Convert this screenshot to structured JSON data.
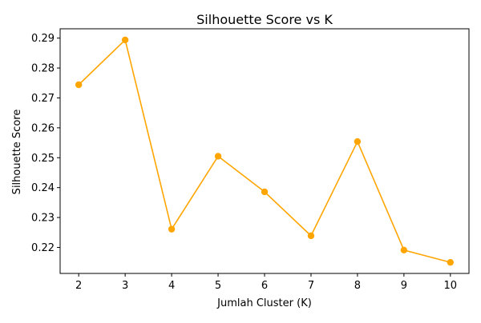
{
  "chart_data": {
    "type": "line",
    "title": "Silhouette Score vs K",
    "xlabel": "Jumlah Cluster (K)",
    "ylabel": "Silhouette Score",
    "x": [
      2,
      3,
      4,
      5,
      6,
      7,
      8,
      9,
      10
    ],
    "series": [
      {
        "values": [
          0.2744,
          0.2894,
          0.2261,
          0.2505,
          0.2386,
          0.2239,
          0.2554,
          0.2191,
          0.215
        ],
        "color": "#ffa500",
        "marker": "circle"
      }
    ],
    "xticks": [
      "2",
      "3",
      "4",
      "5",
      "6",
      "7",
      "8",
      "9",
      "10"
    ],
    "yticks": [
      "0.22",
      "0.23",
      "0.24",
      "0.25",
      "0.26",
      "0.27",
      "0.28",
      "0.29"
    ],
    "ytick_values": [
      0.22,
      0.23,
      0.24,
      0.25,
      0.26,
      0.27,
      0.28,
      0.29
    ],
    "xlim": [
      1.6,
      10.4
    ],
    "ylim": [
      0.2113,
      0.29312
    ],
    "grid": false,
    "legend": false
  }
}
